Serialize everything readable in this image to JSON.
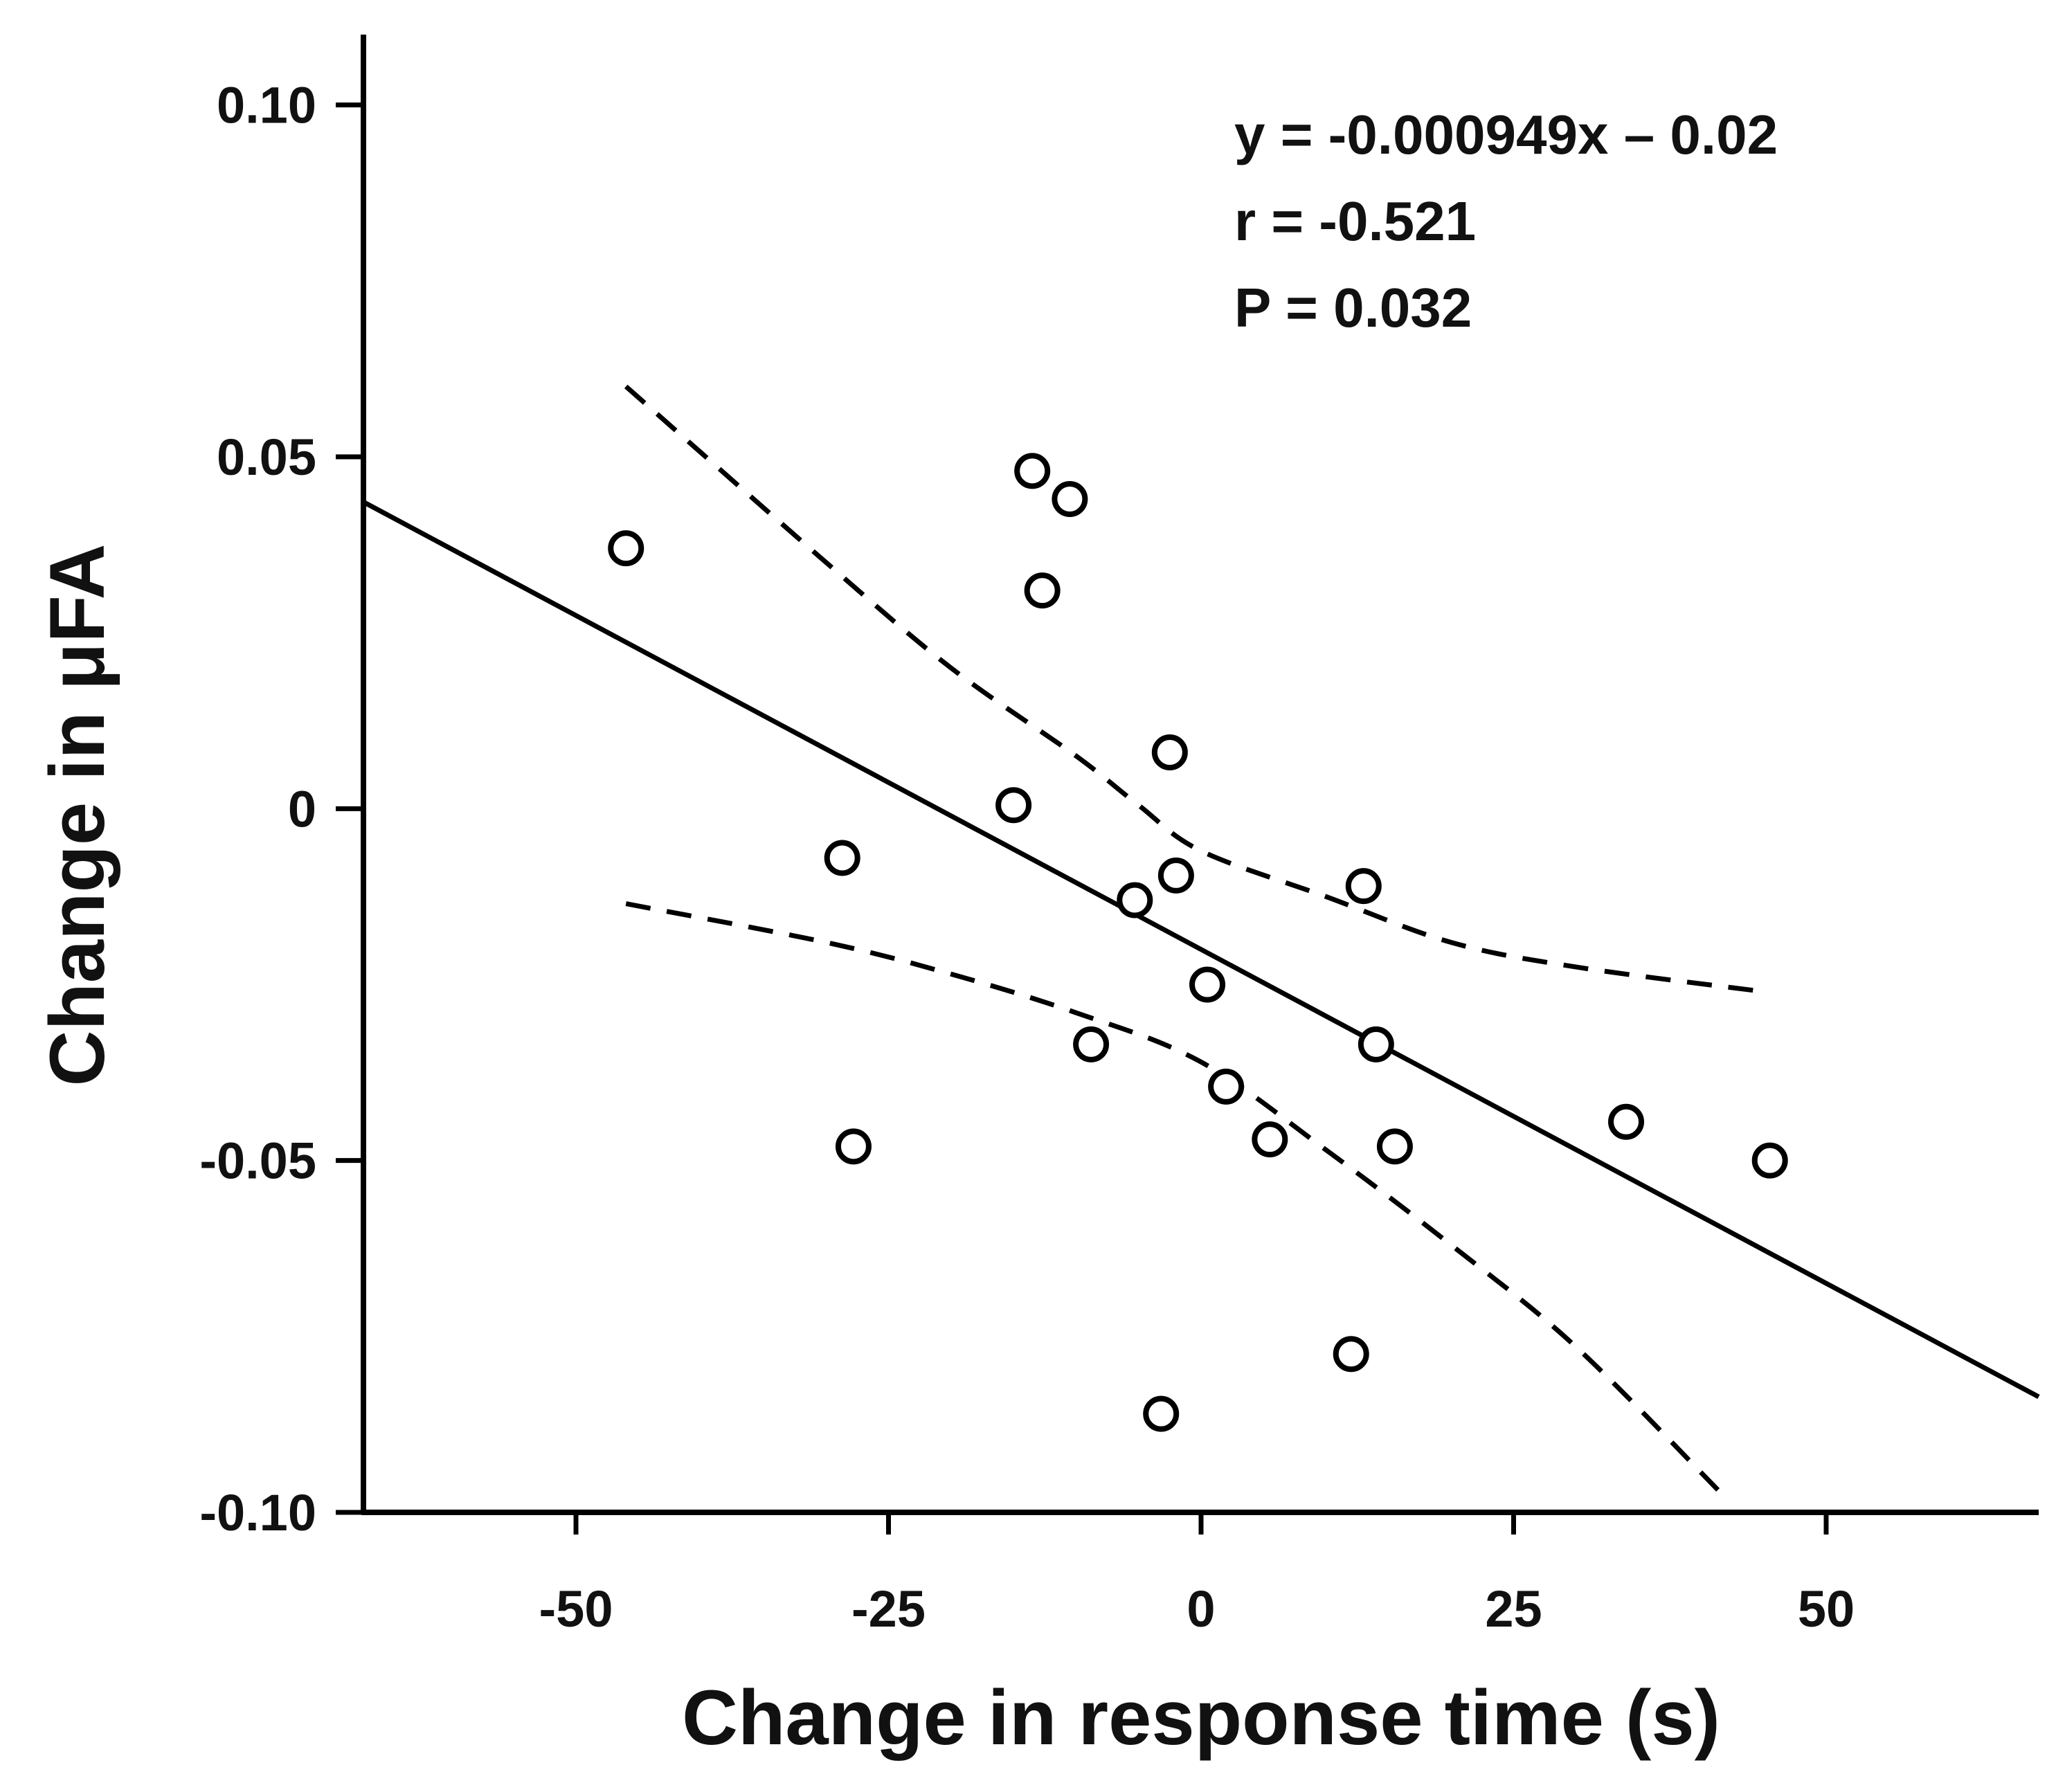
{
  "chart_data": {
    "type": "scatter",
    "title": "",
    "xlabel": "Change in response time (s)",
    "ylabel": "Change in μFA",
    "xlim": [
      -67,
      67
    ],
    "ylim": [
      -0.1,
      0.11
    ],
    "x_ticks": [
      -50,
      -25,
      0,
      25,
      50
    ],
    "x_tick_labels": [
      "-50",
      "-25",
      "0",
      "25",
      "50"
    ],
    "y_ticks": [
      -0.1,
      -0.05,
      0,
      0.05,
      0.1
    ],
    "y_tick_labels": [
      "-0.10",
      "-0.05",
      "0",
      "0.05",
      "0.10"
    ],
    "grid": false,
    "annotations": [
      "y = -0.000949x – 0.02",
      "r = -0.521",
      "P = 0.032"
    ],
    "series": [
      {
        "name": "data",
        "marker": "open-circle",
        "points": [
          [
            -46,
            0.037
          ],
          [
            -13.5,
            0.048
          ],
          [
            -10.5,
            0.044
          ],
          [
            -12.7,
            0.031
          ],
          [
            -2.5,
            0.008
          ],
          [
            -15,
            0.0005
          ],
          [
            -28.7,
            -0.007
          ],
          [
            -2,
            -0.0095
          ],
          [
            -5.3,
            -0.013
          ],
          [
            0.5,
            -0.025
          ],
          [
            -8.8,
            -0.0335
          ],
          [
            13,
            -0.011
          ],
          [
            14,
            -0.0335
          ],
          [
            2,
            -0.0395
          ],
          [
            5.5,
            -0.047
          ],
          [
            15.5,
            -0.048
          ],
          [
            -27.8,
            -0.048
          ],
          [
            34,
            -0.0445
          ],
          [
            45.5,
            -0.05
          ],
          [
            12,
            -0.0775
          ],
          [
            -3.2,
            -0.086
          ]
        ]
      }
    ],
    "regression_line": {
      "slope": -0.000949,
      "intercept": -0.02,
      "x_range": [
        -67,
        67
      ]
    },
    "confidence_band": {
      "upper": [
        [
          -46,
          0.06
        ],
        [
          -30,
          0.035
        ],
        [
          -20,
          0.02
        ],
        [
          -10,
          0.0075
        ],
        [
          -5,
          0.0005
        ],
        [
          0,
          -0.006
        ],
        [
          10,
          -0.0125
        ],
        [
          20,
          -0.019
        ],
        [
          30,
          -0.0225
        ],
        [
          45,
          -0.026
        ]
      ],
      "lower": [
        [
          -46,
          -0.0135
        ],
        [
          -30,
          -0.019
        ],
        [
          -20,
          -0.0235
        ],
        [
          -10,
          -0.029
        ],
        [
          0,
          -0.036
        ],
        [
          10,
          -0.0485
        ],
        [
          20,
          -0.062
        ],
        [
          30,
          -0.0765
        ],
        [
          42,
          -0.098
        ]
      ]
    }
  }
}
